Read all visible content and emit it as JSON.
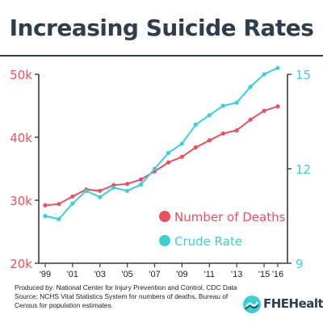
{
  "title": "Increasing Suicide Rates",
  "footnote": "Produced by: National Center for Injury Prevention and Control, CDC Data Source: NCHS Vital Statistics System for numbers of deaths. Bureau of Census for population estimates.",
  "brand": {
    "name": "FHEHealth"
  },
  "colors": {
    "deaths": "#e9505f",
    "rate": "#3ad0d6",
    "title": "#2e3e4c",
    "axis": "#2e3e4c"
  },
  "chart_data": {
    "type": "line",
    "title": "Increasing Suicide Rates",
    "x": [
      1999,
      2000,
      2001,
      2002,
      2003,
      2004,
      2005,
      2006,
      2007,
      2008,
      2009,
      2010,
      2011,
      2012,
      2013,
      2014,
      2015,
      2016
    ],
    "xtick_labels": [
      "'99",
      "'01",
      "'03",
      "'05",
      "'07",
      "'09",
      "'11",
      "'13",
      "'15",
      "'16"
    ],
    "xtick_values": [
      1999,
      2001,
      2003,
      2005,
      2007,
      2009,
      2011,
      2013,
      2015,
      2016
    ],
    "y_left": {
      "lim": [
        20000,
        50000
      ],
      "ticks": [
        20000,
        30000,
        40000,
        50000
      ],
      "tick_labels": [
        "20k",
        "30k",
        "40k",
        "50k"
      ]
    },
    "y_right": {
      "lim": [
        9,
        15
      ],
      "ticks": [
        9,
        12,
        15
      ],
      "tick_labels": [
        "9",
        "12",
        "15"
      ]
    },
    "series": [
      {
        "name": "Number of Deaths",
        "axis": "left",
        "color": "#e9505f",
        "values": [
          29200,
          29400,
          30600,
          31700,
          31500,
          32400,
          32600,
          33300,
          34600,
          36000,
          36900,
          38400,
          39500,
          40600,
          41100,
          42800,
          44200,
          44900
        ]
      },
      {
        "name": "Crude Rate",
        "axis": "right",
        "color": "#3ad0d6",
        "values": [
          10.5,
          10.4,
          10.9,
          11.3,
          11.1,
          11.4,
          11.3,
          11.5,
          12.0,
          12.5,
          12.8,
          13.4,
          13.7,
          14.0,
          14.1,
          14.6,
          15.0,
          15.2
        ]
      }
    ],
    "grid": false,
    "legend": "bottom-right"
  }
}
